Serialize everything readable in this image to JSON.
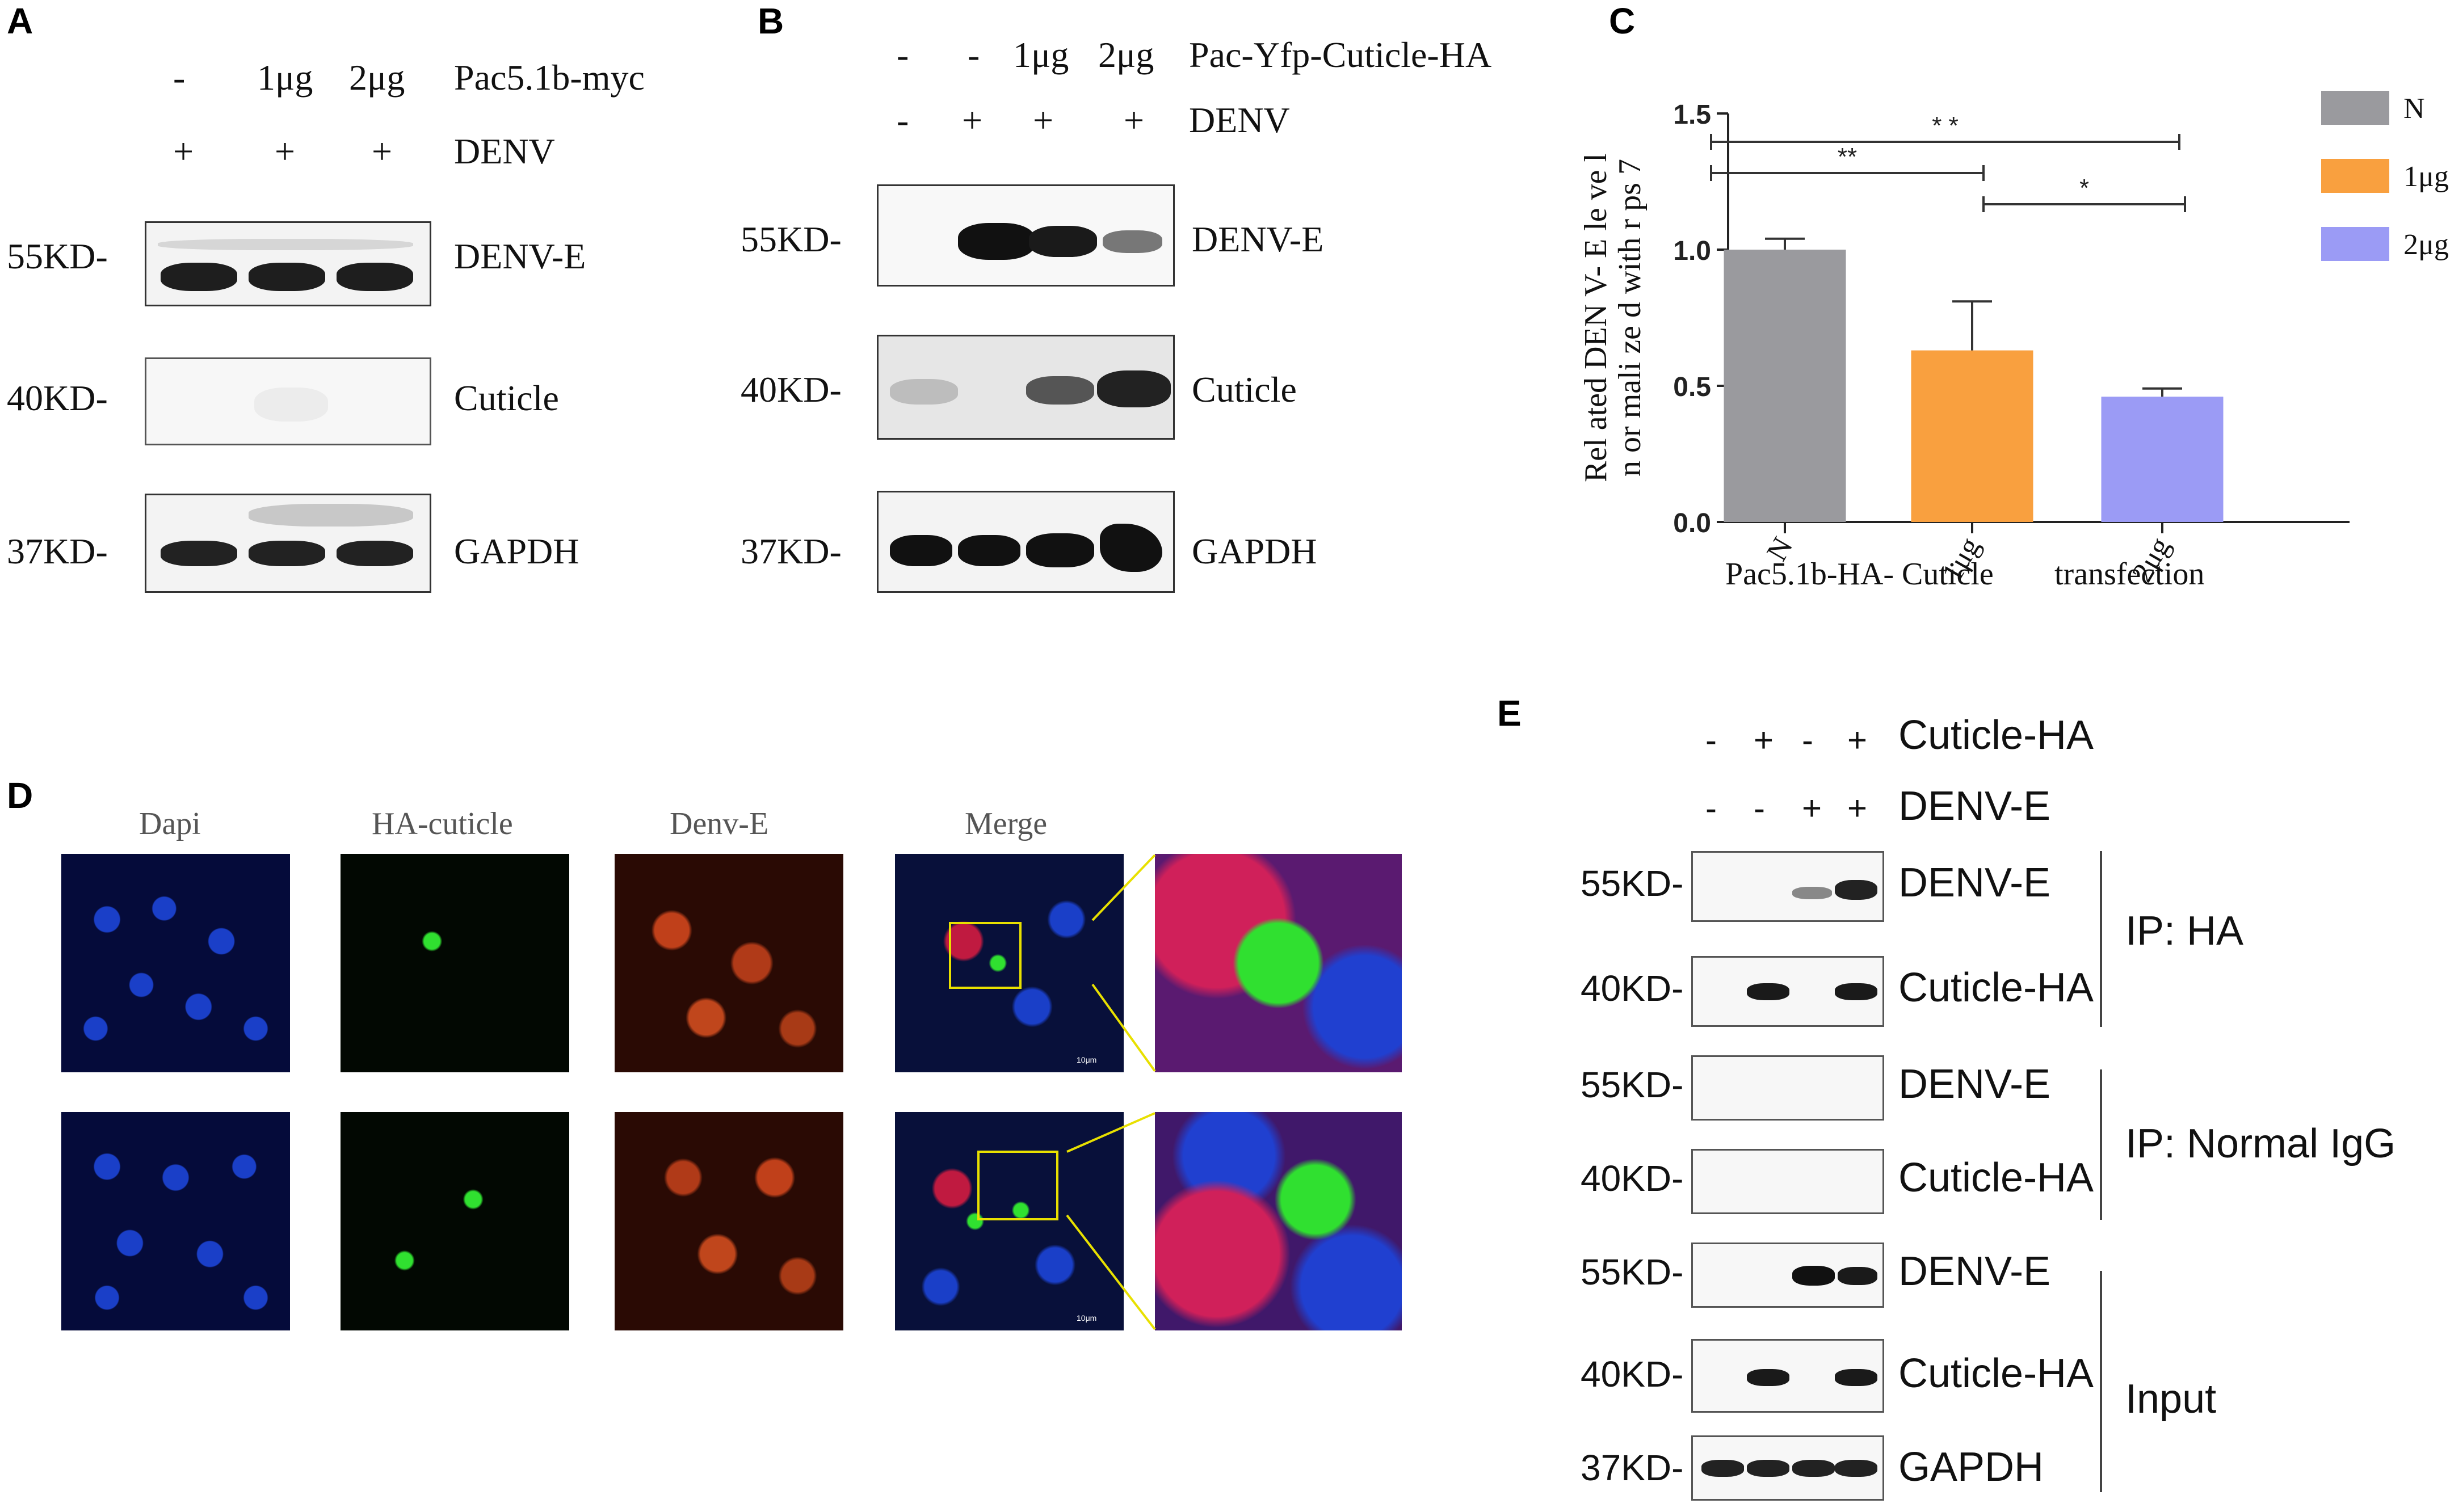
{
  "panels": {
    "A": {
      "letter": "A",
      "conditions": [
        {
          "values": [
            "-",
            "1μg",
            "2μg"
          ],
          "label": "Pac5.1b-myc"
        },
        {
          "values": [
            "+",
            "+",
            "+"
          ],
          "label": "DENV"
        }
      ],
      "blots": [
        {
          "marker": "55KD-",
          "label": "DENV-E"
        },
        {
          "marker": "40KD-",
          "label": "Cuticle"
        },
        {
          "marker": "37KD-",
          "label": "GAPDH"
        }
      ]
    },
    "B": {
      "letter": "B",
      "conditions": [
        {
          "values": [
            "-",
            "-",
            "1μg",
            "2μg"
          ],
          "label": "Pac-Yfp-Cuticle-HA"
        },
        {
          "values": [
            "-",
            "+",
            "+",
            "+"
          ],
          "label": "DENV"
        }
      ],
      "blots": [
        {
          "marker": "55KD-",
          "label": "DENV-E"
        },
        {
          "marker": "40KD-",
          "label": "Cuticle"
        },
        {
          "marker": "37KD-",
          "label": "GAPDH"
        }
      ]
    },
    "C": {
      "letter": "C"
    },
    "D": {
      "letter": "D",
      "columns": [
        "Dapi",
        "HA-cuticle",
        "Denv-E",
        "Merge"
      ],
      "scale_label": "10μm"
    },
    "E": {
      "letter": "E",
      "conditions": [
        {
          "values": [
            "-",
            "+",
            "-",
            "+"
          ],
          "label": "Cuticle-HA"
        },
        {
          "values": [
            "-",
            "-",
            "+",
            "+"
          ],
          "label": "DENV-E"
        }
      ],
      "blots": [
        {
          "marker": "55KD-",
          "label": "DENV-E"
        },
        {
          "marker": "40KD-",
          "label": "Cuticle-HA"
        },
        {
          "marker": "55KD-",
          "label": "DENV-E"
        },
        {
          "marker": "40KD-",
          "label": "Cuticle-HA"
        },
        {
          "marker": "55KD-",
          "label": "DENV-E"
        },
        {
          "marker": "40KD-",
          "label": "Cuticle-HA"
        },
        {
          "marker": "37KD-",
          "label": "GAPDH"
        }
      ],
      "groups": [
        "IP: HA",
        "IP: Normal IgG",
        "Input"
      ]
    }
  },
  "chart_data": {
    "type": "bar",
    "categories": [
      "N",
      "1μg",
      "2μg"
    ],
    "values": [
      1.0,
      0.63,
      0.46
    ],
    "errors": [
      0.04,
      0.18,
      0.03
    ],
    "colors": [
      "#9a9a9e",
      "#f9a03f",
      "#9b9bf5"
    ],
    "ylabel_line1": "Rel ated DEN V- E le ve l",
    "ylabel_line2": "n or mali ze d with r ps 7",
    "xlabel_part1": "Pac5.1b-HA- Cuticle",
    "xlabel_part2": "transfection",
    "ylim": [
      0,
      1.5
    ],
    "yticks": [
      "0.0",
      "0.5",
      "1.0",
      "1.5"
    ],
    "significance": [
      {
        "from": "N",
        "to": "2μg",
        "label": "* *"
      },
      {
        "from": "N",
        "to": "1μg",
        "label": "**"
      },
      {
        "from": "1μg",
        "to": "2μg",
        "label": "*"
      }
    ],
    "legend": [
      "N",
      "1μg",
      "2μg"
    ],
    "legend_position": "top-right"
  }
}
